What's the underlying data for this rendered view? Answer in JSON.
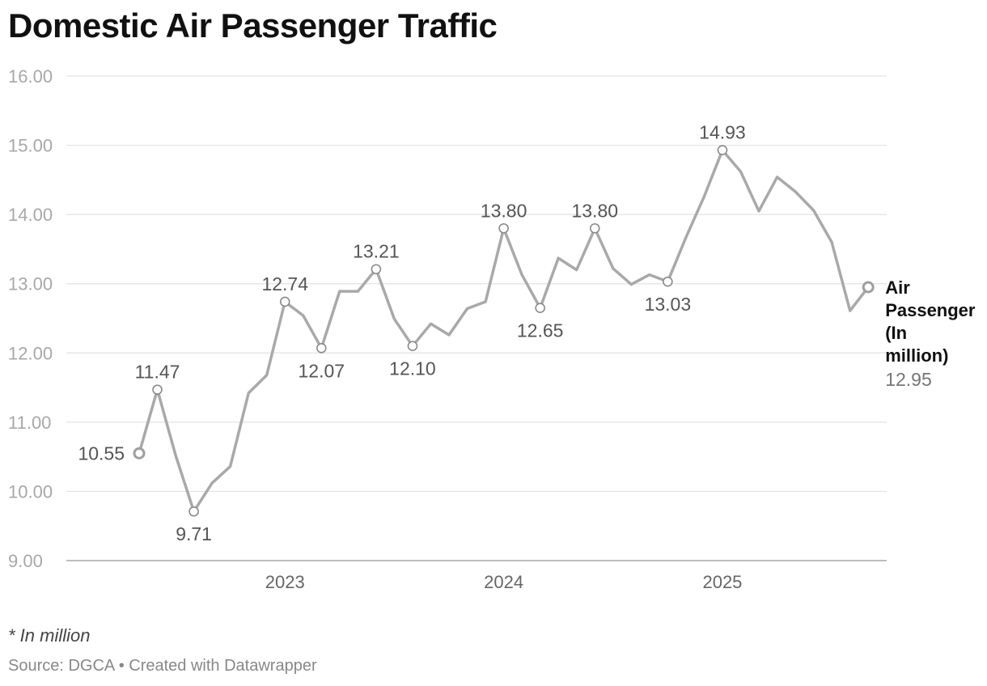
{
  "title": "Domestic Air Passenger Traffic",
  "footnote": "* In million",
  "source": "Source: DGCA • Created with Datawrapper",
  "colors": {
    "line": "#a9a9a9",
    "grid": "#e3e3e3",
    "axis": "#999999"
  },
  "chart_data": {
    "type": "line",
    "title": "Domestic Air Passenger Traffic",
    "xlabel": "",
    "ylabel": "",
    "ylim": [
      9,
      16
    ],
    "yticks": [
      "9.00",
      "10.00",
      "11.00",
      "12.00",
      "13.00",
      "14.00",
      "15.00",
      "16.00"
    ],
    "xticks": [
      "2023",
      "2024",
      "2025"
    ],
    "grid": true,
    "series": [
      {
        "name": "Air Passenger (In million)",
        "last_value_label": "12.95",
        "points": [
          {
            "x": "2022-05",
            "y": 10.55,
            "label": "10.55"
          },
          {
            "x": "2022-06",
            "y": 11.47,
            "label": "11.47"
          },
          {
            "x": "2022-07",
            "y": 10.52
          },
          {
            "x": "2022-08",
            "y": 9.71,
            "label": "9.71"
          },
          {
            "x": "2022-09",
            "y": 10.12
          },
          {
            "x": "2022-10",
            "y": 10.36
          },
          {
            "x": "2022-11",
            "y": 11.42
          },
          {
            "x": "2022-12",
            "y": 11.68
          },
          {
            "x": "2023-01",
            "y": 12.74,
            "label": "12.74"
          },
          {
            "x": "2023-02",
            "y": 12.54
          },
          {
            "x": "2023-03",
            "y": 12.07,
            "label": "12.07"
          },
          {
            "x": "2023-04",
            "y": 12.89
          },
          {
            "x": "2023-05",
            "y": 12.89
          },
          {
            "x": "2023-06",
            "y": 13.21,
            "label": "13.21"
          },
          {
            "x": "2023-07",
            "y": 12.49
          },
          {
            "x": "2023-08",
            "y": 12.1,
            "label": "12.10"
          },
          {
            "x": "2023-09",
            "y": 12.42
          },
          {
            "x": "2023-10",
            "y": 12.26
          },
          {
            "x": "2023-11",
            "y": 12.64
          },
          {
            "x": "2023-12",
            "y": 12.74
          },
          {
            "x": "2024-01",
            "y": 13.8,
            "label": "13.80"
          },
          {
            "x": "2024-02",
            "y": 13.13
          },
          {
            "x": "2024-03",
            "y": 12.65,
            "label": "12.65"
          },
          {
            "x": "2024-04",
            "y": 13.37
          },
          {
            "x": "2024-05",
            "y": 13.2
          },
          {
            "x": "2024-06",
            "y": 13.8,
            "label": "13.80"
          },
          {
            "x": "2024-07",
            "y": 13.22
          },
          {
            "x": "2024-08",
            "y": 12.99
          },
          {
            "x": "2024-09",
            "y": 13.13
          },
          {
            "x": "2024-10",
            "y": 13.03,
            "label": "13.03"
          },
          {
            "x": "2024-11",
            "y": 13.67
          },
          {
            "x": "2024-12",
            "y": 14.26
          },
          {
            "x": "2025-01",
            "y": 14.93,
            "label": "14.93"
          },
          {
            "x": "2025-02",
            "y": 14.62
          },
          {
            "x": "2025-03",
            "y": 14.05
          },
          {
            "x": "2025-04",
            "y": 14.54
          },
          {
            "x": "2025-05",
            "y": 14.33
          },
          {
            "x": "2025-06",
            "y": 14.06
          },
          {
            "x": "2025-07",
            "y": 13.6
          },
          {
            "x": "2025-08",
            "y": 12.61
          },
          {
            "x": "2025-09",
            "y": 12.95
          }
        ]
      }
    ]
  }
}
